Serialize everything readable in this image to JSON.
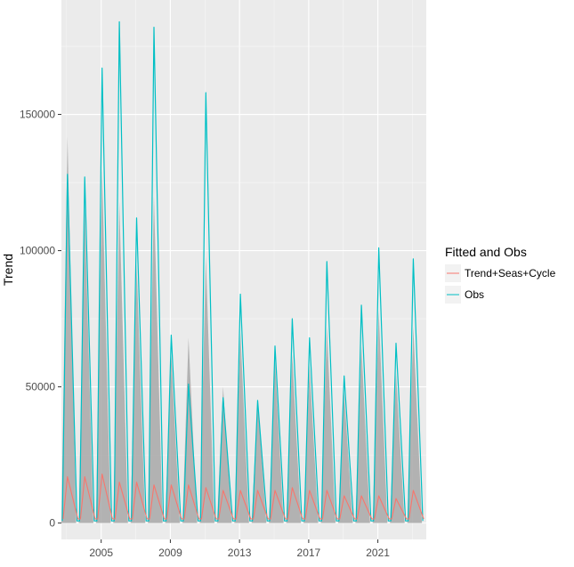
{
  "chart_data": {
    "type": "line",
    "title": "",
    "xlabel": "",
    "ylabel": "Trend",
    "xlim": [
      2002.7,
      2023.8
    ],
    "ylim": [
      -6000,
      192000
    ],
    "x_ticks": [
      {
        "value": 2005,
        "label": "2005"
      },
      {
        "value": 2009,
        "label": "2009"
      },
      {
        "value": 2013,
        "label": "2013"
      },
      {
        "value": 2017,
        "label": "2017"
      },
      {
        "value": 2021,
        "label": "2021"
      }
    ],
    "y_ticks": [
      {
        "value": 0,
        "label": "0"
      },
      {
        "value": 50000,
        "label": "50000"
      },
      {
        "value": 100000,
        "label": "100000"
      },
      {
        "value": 150000,
        "label": "150000"
      }
    ],
    "grid": true,
    "legend": {
      "title": "Fitted and Obs",
      "position": "right",
      "entries": [
        {
          "label": "Trend+Seas+Cycle",
          "color": "#F8766D"
        },
        {
          "label": "Obs",
          "color": "#00BFC4"
        }
      ]
    },
    "colors": {
      "panel": "#EBEBEB",
      "grid": "#FFFFFF",
      "band": "#A8A8A8"
    },
    "seasonal_peaks": [
      {
        "x": 2003.05,
        "obs": 128000,
        "fit": 17000,
        "band": 142000
      },
      {
        "x": 2004.05,
        "obs": 127000,
        "fit": 17000,
        "band": 115000
      },
      {
        "x": 2005.05,
        "obs": 167000,
        "fit": 18000,
        "band": 130000
      },
      {
        "x": 2006.05,
        "obs": 184000,
        "fit": 15000,
        "band": 118000
      },
      {
        "x": 2007.05,
        "obs": 112000,
        "fit": 15000,
        "band": 95000
      },
      {
        "x": 2008.05,
        "obs": 182000,
        "fit": 14000,
        "band": 120000
      },
      {
        "x": 2009.05,
        "obs": 69000,
        "fit": 14000,
        "band": 62000
      },
      {
        "x": 2010.05,
        "obs": 51000,
        "fit": 14000,
        "band": 68000
      },
      {
        "x": 2011.05,
        "obs": 158000,
        "fit": 13000,
        "band": 98000
      },
      {
        "x": 2012.05,
        "obs": 46000,
        "fit": 12000,
        "band": 50000
      },
      {
        "x": 2013.05,
        "obs": 84000,
        "fit": 12000,
        "band": 70000
      },
      {
        "x": 2014.05,
        "obs": 45000,
        "fit": 12000,
        "band": 45000
      },
      {
        "x": 2015.05,
        "obs": 65000,
        "fit": 12000,
        "band": 60000
      },
      {
        "x": 2016.05,
        "obs": 75000,
        "fit": 13000,
        "band": 62000
      },
      {
        "x": 2017.05,
        "obs": 68000,
        "fit": 12000,
        "band": 58000
      },
      {
        "x": 2018.05,
        "obs": 96000,
        "fit": 12000,
        "band": 72000
      },
      {
        "x": 2019.05,
        "obs": 54000,
        "fit": 10000,
        "band": 48000
      },
      {
        "x": 2020.05,
        "obs": 80000,
        "fit": 10000,
        "band": 65000
      },
      {
        "x": 2021.05,
        "obs": 101000,
        "fit": 10000,
        "band": 78000
      },
      {
        "x": 2022.05,
        "obs": 66000,
        "fit": 9000,
        "band": 55000
      },
      {
        "x": 2023.05,
        "obs": 97000,
        "fit": 12000,
        "band": 72000
      }
    ]
  }
}
